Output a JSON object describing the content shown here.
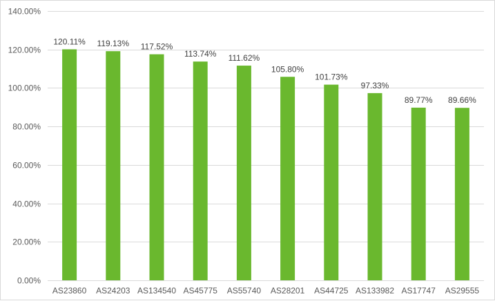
{
  "chart_data": {
    "type": "bar",
    "title": "",
    "xlabel": "",
    "ylabel": "",
    "categories": [
      "AS23860",
      "AS24203",
      "AS134540",
      "AS45775",
      "AS55740",
      "AS28201",
      "AS44725",
      "AS133982",
      "AS17747",
      "AS29555"
    ],
    "values": [
      120.11,
      119.13,
      117.52,
      113.74,
      111.62,
      105.8,
      101.73,
      97.33,
      89.77,
      89.66
    ],
    "data_labels": [
      "120.11%",
      "119.13%",
      "117.52%",
      "113.74%",
      "111.62%",
      "105.80%",
      "101.73%",
      "97.33%",
      "89.77%",
      "89.66%"
    ],
    "ylim": [
      0,
      140
    ],
    "yticks": [
      0,
      20,
      40,
      60,
      80,
      100,
      120,
      140
    ],
    "ytick_labels": [
      "0.00%",
      "20.00%",
      "40.00%",
      "60.00%",
      "80.00%",
      "100.00%",
      "120.00%",
      "140.00%"
    ],
    "grid": true,
    "legend": "none",
    "bar_color": "#6ab82e",
    "gridline_color": "#d9d9d9",
    "label_color": "#595959"
  }
}
